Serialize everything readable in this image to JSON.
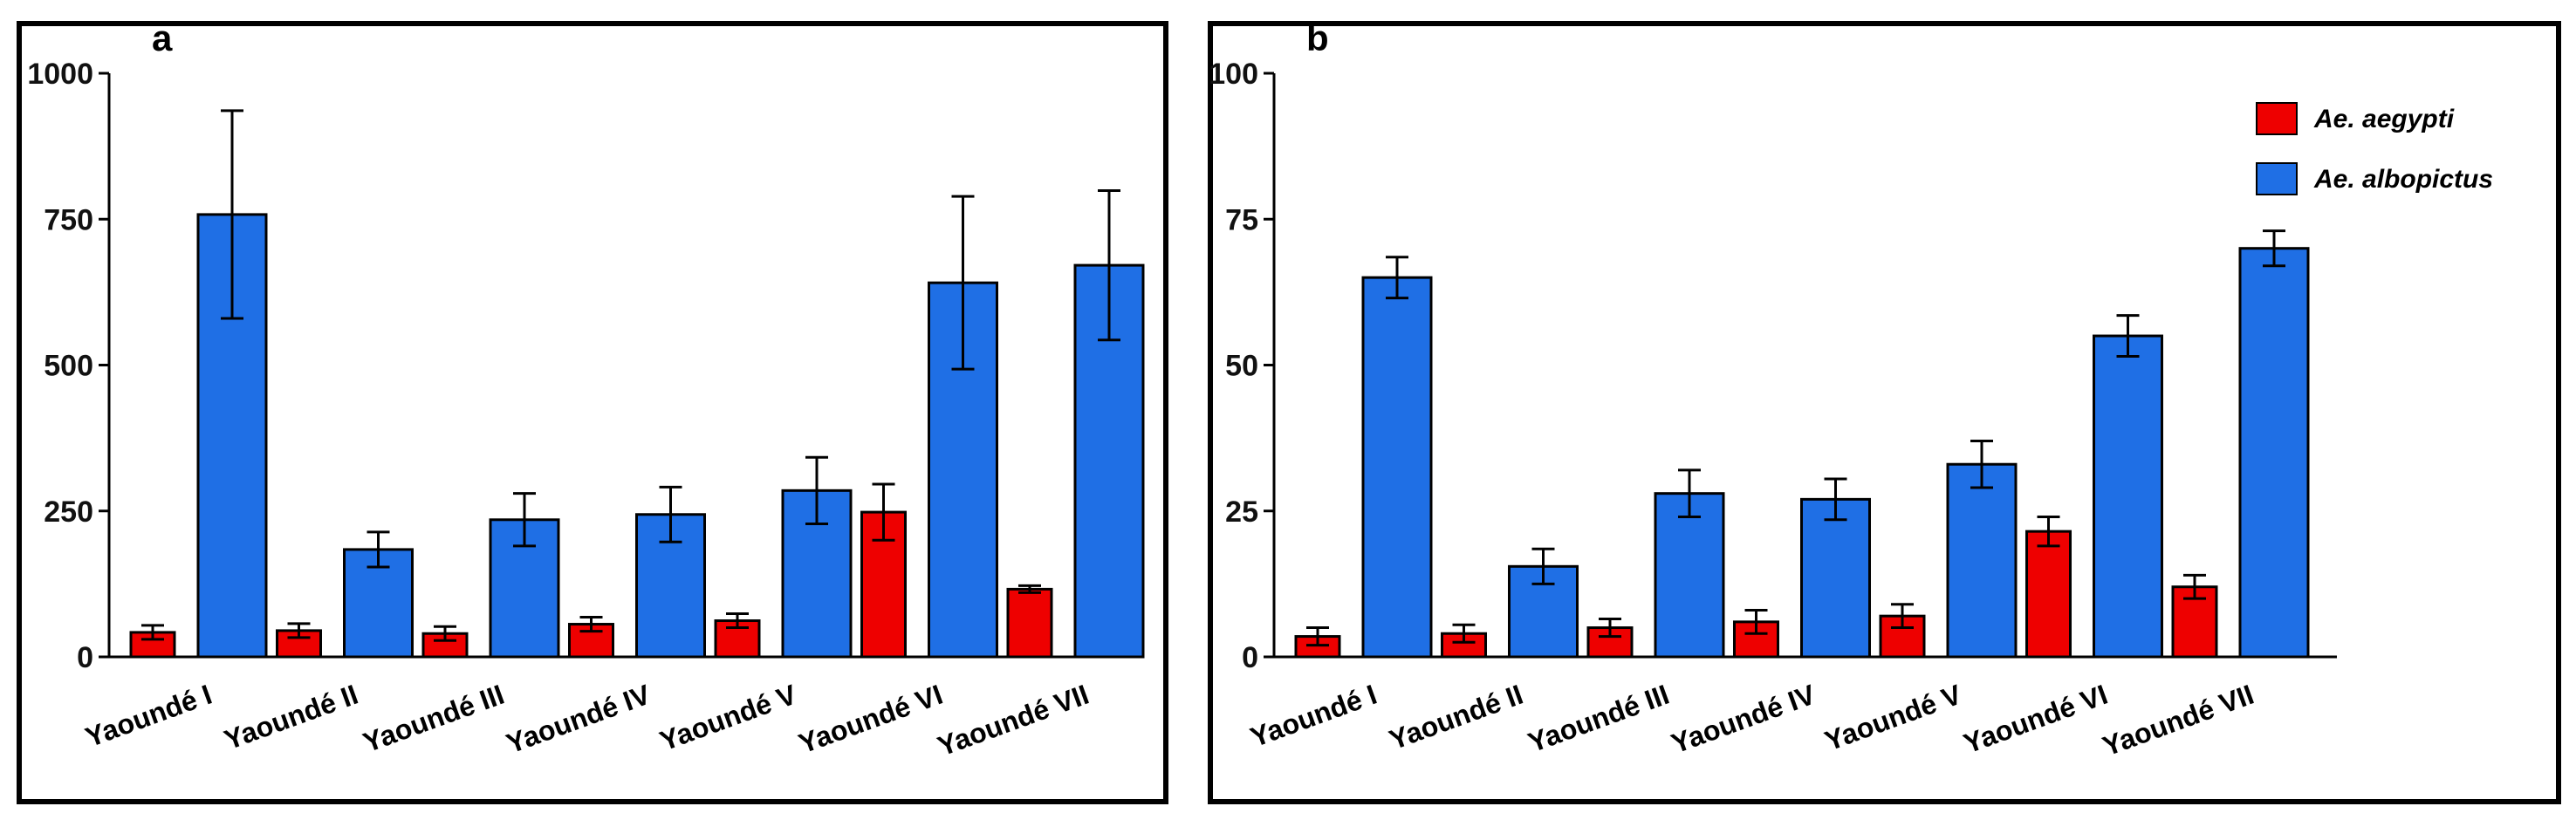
{
  "figure": {
    "panels": [
      "a",
      "b"
    ]
  },
  "legend": {
    "items": [
      {
        "label": "Ae. aegypti",
        "color": "#ee0000"
      },
      {
        "label": "Ae. albopictus",
        "color": "#1f6fe5"
      }
    ]
  },
  "chart_data": [
    {
      "type": "bar",
      "panel": "a",
      "categories": [
        "Yaoundé I",
        "Yaoundé II",
        "Yaoundé III",
        "Yaoundé IV",
        "Yaoundé V",
        "Yaoundé VI",
        "Yaoundé VII"
      ],
      "series": [
        {
          "name": "Ae. aegypti",
          "color": "#ee0000",
          "values": [
            42,
            45,
            40,
            56,
            62,
            248,
            116
          ],
          "error": [
            12,
            12,
            12,
            12,
            12,
            48,
            6
          ]
        },
        {
          "name": "Ae. albopictus",
          "color": "#1f6fe5",
          "values": [
            758,
            184,
            235,
            244,
            285,
            641,
            671
          ],
          "error": [
            178,
            30,
            45,
            47,
            57,
            148,
            128
          ]
        }
      ],
      "ylim": [
        0,
        1000
      ],
      "yticks": [
        "0",
        "250",
        "500",
        "750",
        "1000"
      ],
      "xlabel": "",
      "ylabel": "",
      "title": ""
    },
    {
      "type": "bar",
      "panel": "b",
      "categories": [
        "Yaoundé I",
        "Yaoundé II",
        "Yaoundé III",
        "Yaoundé IV",
        "Yaoundé V",
        "Yaoundé VI",
        "Yaoundé VII"
      ],
      "series": [
        {
          "name": "Ae. aegypti",
          "color": "#ee0000",
          "values": [
            3.5,
            4,
            5,
            6,
            7,
            21.5,
            12
          ],
          "error": [
            1.5,
            1.5,
            1.5,
            2,
            2,
            2.5,
            2
          ]
        },
        {
          "name": "Ae. albopictus",
          "color": "#1f6fe5",
          "values": [
            65,
            15.5,
            28,
            27,
            33,
            55,
            70
          ],
          "error": [
            3.5,
            3,
            4,
            3.5,
            4,
            3.5,
            3
          ]
        }
      ],
      "ylim": [
        0,
        100
      ],
      "yticks": [
        "0",
        "25",
        "50",
        "75",
        "100"
      ],
      "xlabel": "",
      "ylabel": "",
      "title": ""
    }
  ]
}
